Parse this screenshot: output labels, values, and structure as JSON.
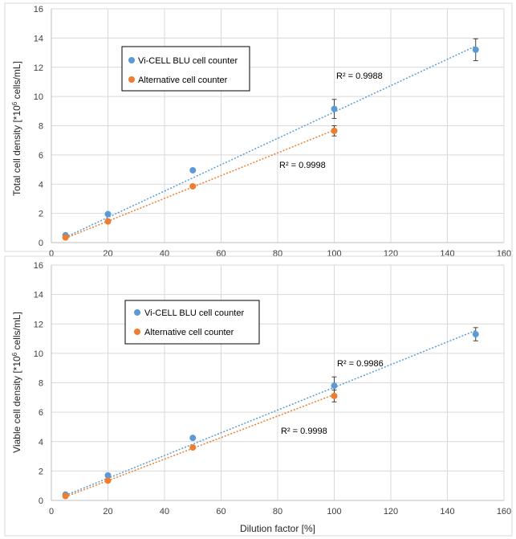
{
  "colors": {
    "vicell": "#5b9bd5",
    "alternative": "#ed7d31",
    "gridline": "#d9d9d9",
    "axis": "#bfbfbf",
    "errorbar": "#404040"
  },
  "chart_data": [
    {
      "type": "scatter",
      "ylabel_text": "Total cell density [*10",
      "ylabel_sup": "6",
      "ylabel_tail": " cells/mL]",
      "xlim": [
        0,
        160
      ],
      "ylim": [
        0,
        16
      ],
      "xticks": [
        "0",
        "20",
        "40",
        "60",
        "80",
        "100",
        "120",
        "140",
        "160"
      ],
      "yticks": [
        "0",
        "2",
        "4",
        "6",
        "8",
        "10",
        "12",
        "14",
        "16"
      ],
      "grid": true,
      "legend": [
        "Vi-CELL BLU cell counter",
        "Alternative cell counter"
      ],
      "series": [
        {
          "name": "Vi-CELL BLU cell counter",
          "x": [
            5,
            20,
            50,
            100,
            150
          ],
          "y": [
            0.5,
            1.95,
            4.95,
            9.15,
            13.2
          ],
          "err": [
            0,
            0,
            0,
            0.65,
            0.75
          ],
          "trend": [
            [
              5,
              0.37
            ],
            [
              150,
              13.45
            ]
          ],
          "r2_label": "R² = 0.9988"
        },
        {
          "name": "Alternative cell counter",
          "x": [
            5,
            20,
            50,
            100
          ],
          "y": [
            0.35,
            1.45,
            3.85,
            7.65
          ],
          "err": [
            0,
            0,
            0,
            0.35
          ],
          "trend": [
            [
              5,
              0.3
            ],
            [
              100,
              7.7
            ]
          ],
          "r2_label": "R² = 0.9998"
        }
      ]
    },
    {
      "type": "scatter",
      "ylabel_text": "Viable cell density [*10",
      "ylabel_sup": "6",
      "ylabel_tail": " cells/mL]",
      "xlabel": "Dilution factor [%]",
      "xlim": [
        0,
        160
      ],
      "ylim": [
        0,
        16
      ],
      "xticks": [
        "0",
        "20",
        "40",
        "60",
        "80",
        "100",
        "120",
        "140",
        "160"
      ],
      "yticks": [
        "0",
        "2",
        "4",
        "6",
        "8",
        "10",
        "12",
        "14",
        "16"
      ],
      "grid": true,
      "legend": [
        "Vi-CELL BLU cell counter",
        "Alternative cell counter"
      ],
      "series": [
        {
          "name": "Vi-CELL BLU cell counter",
          "x": [
            5,
            20,
            50,
            100,
            150
          ],
          "y": [
            0.4,
            1.7,
            4.25,
            7.8,
            11.3
          ],
          "err": [
            0,
            0,
            0,
            0.6,
            0.45
          ],
          "trend": [
            [
              5,
              0.35
            ],
            [
              150,
              11.55
            ]
          ],
          "r2_label": "R² = 0.9986"
        },
        {
          "name": "Alternative cell counter",
          "x": [
            5,
            20,
            50,
            100
          ],
          "y": [
            0.3,
            1.35,
            3.6,
            7.1
          ],
          "err": [
            0,
            0,
            0,
            0.4
          ],
          "trend": [
            [
              5,
              0.25
            ],
            [
              100,
              7.2
            ]
          ],
          "r2_label": "R² = 0.9998"
        }
      ]
    }
  ]
}
